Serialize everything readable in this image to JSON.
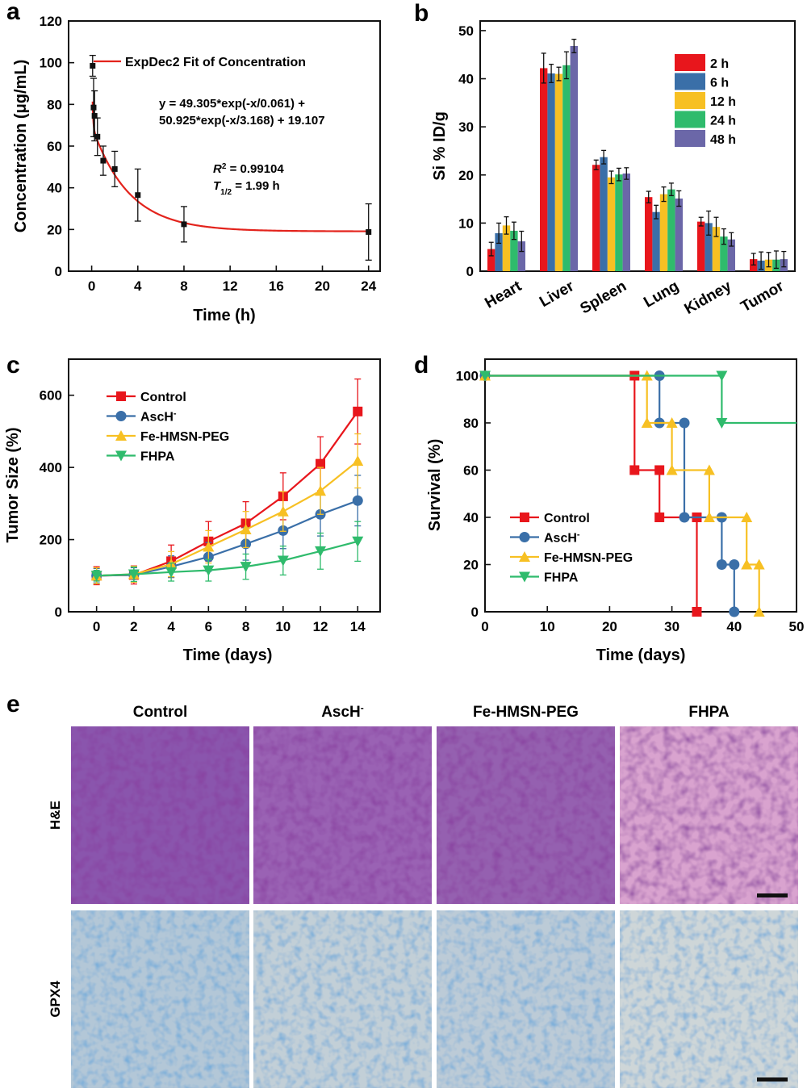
{
  "chart_data": [
    {
      "panel": "a",
      "type": "scatter",
      "title": "",
      "xlabel": "Time (h)",
      "ylabel": "Concentration (μg/mL)",
      "xlim": [
        -2,
        25
      ],
      "ylim": [
        0,
        120
      ],
      "xticks": [
        0,
        4,
        8,
        12,
        16,
        20,
        24
      ],
      "yticks": [
        0,
        20,
        40,
        60,
        80,
        100,
        120
      ],
      "legend": "top-right",
      "series": [
        {
          "name": "",
          "color": "#111111",
          "x": [
            0.083,
            0.167,
            0.25,
            0.5,
            1,
            2,
            4,
            8,
            24
          ],
          "y": [
            98.5,
            78.5,
            74.5,
            64.5,
            53,
            49,
            36.5,
            22.5,
            18.8
          ],
          "err": [
            5,
            14,
            12,
            9,
            7,
            8.5,
            12.5,
            8.5,
            13.5
          ]
        }
      ],
      "fit": {
        "name": "ExpDec2 Fit of Concentration",
        "color": "#e3231c",
        "equation_line1": "y = 49.305*exp(-x/0.061) +",
        "equation_line2": "50.925*exp(-x/3.168) + 19.107",
        "r2_label": "R",
        "r2_sup": "2",
        "r2_value": " = 0.99104",
        "thalf_label": "T",
        "thalf_sub": "1/2",
        "thalf_value": " = 1.99 h",
        "a1": 49.305,
        "t1": 0.061,
        "a2": 50.925,
        "t2": 3.168,
        "y0": 19.107
      }
    },
    {
      "panel": "b",
      "type": "bar",
      "title": "",
      "xlabel": "",
      "ylabel": "Si % ID/g",
      "ylim": [
        0,
        52
      ],
      "yticks": [
        0,
        10,
        20,
        30,
        40,
        50
      ],
      "legend": "top-right",
      "categories": [
        "Heart",
        "Liver",
        "Spleen",
        "Lung",
        "Kidney",
        "Tumor"
      ],
      "series": [
        {
          "name": "2 h",
          "color": "#e8161c",
          "values": [
            4.6,
            42.2,
            22.1,
            15.4,
            10.3,
            2.5
          ],
          "err": [
            1.4,
            3.1,
            1.0,
            1.2,
            0.9,
            1.2
          ]
        },
        {
          "name": "6 h",
          "color": "#3a6fa8",
          "values": [
            7.9,
            41.1,
            23.7,
            12.3,
            10.0,
            2.2
          ],
          "err": [
            2.1,
            1.9,
            1.4,
            1.4,
            2.5,
            1.8
          ]
        },
        {
          "name": "12 h",
          "color": "#f7c023",
          "values": [
            9.5,
            41.0,
            19.5,
            16.0,
            9.2,
            2.4
          ],
          "err": [
            1.8,
            1.4,
            1.3,
            1.5,
            2.0,
            1.5
          ]
        },
        {
          "name": "24 h",
          "color": "#2fbb6c",
          "values": [
            8.4,
            42.8,
            20.1,
            17.0,
            7.2,
            2.4
          ],
          "err": [
            1.8,
            2.8,
            1.3,
            1.3,
            1.6,
            1.8
          ]
        },
        {
          "name": "48 h",
          "color": "#6b67a8",
          "values": [
            6.2,
            46.8,
            20.3,
            15.1,
            6.6,
            2.5
          ],
          "err": [
            2.1,
            1.4,
            1.2,
            1.6,
            1.4,
            1.6
          ]
        }
      ]
    },
    {
      "panel": "c",
      "type": "line",
      "title": "",
      "xlabel": "Time (days)",
      "ylabel": "Tumor Size (%)",
      "xlim": [
        -1.5,
        15.2
      ],
      "ylim": [
        0,
        700
      ],
      "xticks": [
        0,
        2,
        4,
        6,
        8,
        10,
        12,
        14
      ],
      "yticks": [
        0,
        200,
        400,
        600
      ],
      "legend": "top-left",
      "x": [
        0,
        2,
        4,
        6,
        8,
        10,
        12,
        14
      ],
      "series": [
        {
          "name": "Control",
          "color": "#e8161c",
          "marker": "square",
          "values": [
            100,
            102,
            140,
            195,
            245,
            320,
            410,
            555
          ],
          "err": [
            25,
            25,
            45,
            55,
            60,
            65,
            75,
            90
          ]
        },
        {
          "name": "AscH",
          "sup": "-",
          "color": "#3a6fa8",
          "marker": "circle",
          "values": [
            100,
            102,
            125,
            152,
            188,
            225,
            270,
            308
          ],
          "err": [
            20,
            20,
            30,
            40,
            45,
            50,
            60,
            70
          ]
        },
        {
          "name": "Fe-HMSN-PEG",
          "color": "#f7c023",
          "marker": "triangle-up",
          "values": [
            100,
            104,
            132,
            180,
            228,
            278,
            335,
            418
          ],
          "err": [
            22,
            22,
            35,
            45,
            50,
            55,
            65,
            75
          ]
        },
        {
          "name": "FHPA",
          "color": "#2fbb6c",
          "marker": "triangle-down",
          "values": [
            100,
            104,
            110,
            115,
            125,
            142,
            168,
            195
          ],
          "err": [
            15,
            20,
            25,
            30,
            35,
            40,
            50,
            55
          ]
        }
      ]
    },
    {
      "panel": "d",
      "type": "line",
      "title": "",
      "xlabel": "Time (days)",
      "ylabel": "Survival (%)",
      "xlim": [
        0,
        50
      ],
      "ylim": [
        0,
        107
      ],
      "xticks": [
        0,
        10,
        20,
        30,
        40,
        50
      ],
      "yticks": [
        0,
        20,
        40,
        60,
        80,
        100
      ],
      "legend": "bottom-left",
      "series": [
        {
          "name": "Control",
          "color": "#e8161c",
          "marker": "square",
          "x": [
            0,
            24,
            28,
            34
          ],
          "y": [
            100,
            60,
            40,
            0
          ]
        },
        {
          "name": "AscH",
          "sup": "-",
          "color": "#3a6fa8",
          "marker": "circle",
          "x": [
            0,
            28,
            32,
            38,
            40
          ],
          "y": [
            100,
            80,
            40,
            20,
            0
          ]
        },
        {
          "name": "Fe-HMSN-PEG",
          "color": "#f7c023",
          "marker": "triangle-up",
          "x": [
            0,
            26,
            30,
            36,
            42,
            44
          ],
          "y": [
            100,
            80,
            60,
            40,
            20,
            0
          ]
        },
        {
          "name": "FHPA",
          "color": "#2fbb6c",
          "marker": "triangle-down",
          "x": [
            0,
            38,
            50
          ],
          "y": [
            100,
            80,
            80
          ]
        }
      ]
    }
  ],
  "panel_labels": {
    "a": "a",
    "b": "b",
    "c": "c",
    "d": "d",
    "e": "e"
  },
  "histology": {
    "columns": [
      {
        "label": "Control",
        "sup": ""
      },
      {
        "label": "AscH",
        "sup": "-"
      },
      {
        "label": "Fe-HMSN-PEG",
        "sup": ""
      },
      {
        "label": "FHPA",
        "sup": ""
      }
    ],
    "rows": [
      "H&E",
      "GPX4"
    ],
    "he_colors": [
      "#8a55ad",
      "#9a62b4",
      "#9561b0",
      "#d9a3cf"
    ],
    "gpx4_colors": [
      "#b3c7d7",
      "#c2cfd7",
      "#bccbd7",
      "#ced6d8"
    ]
  }
}
